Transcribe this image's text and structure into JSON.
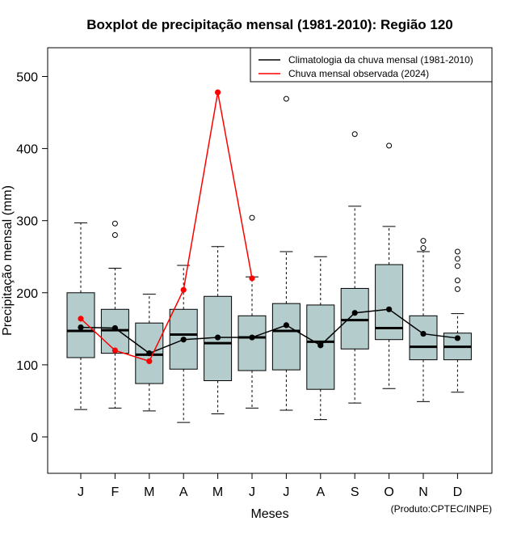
{
  "chart_data": {
    "type": "boxplot",
    "title": "Boxplot de precipitação mensal (1981-2010): Região 120",
    "xlabel": "Meses",
    "ylabel": "Precipitação mensal (mm)",
    "ylim": [
      -50,
      540
    ],
    "yticks": [
      0,
      100,
      200,
      300,
      400,
      500
    ],
    "categories": [
      "J",
      "F",
      "M",
      "A",
      "M",
      "J",
      "J",
      "A",
      "S",
      "O",
      "N",
      "D"
    ],
    "boxes": [
      {
        "month": "J",
        "whisker_low": 38,
        "q1": 110,
        "median": 147,
        "q3": 200,
        "whisker_high": 297,
        "outliers": []
      },
      {
        "month": "F",
        "whisker_low": 40,
        "q1": 116,
        "median": 148,
        "q3": 177,
        "whisker_high": 234,
        "outliers": [
          280,
          296
        ]
      },
      {
        "month": "M",
        "whisker_low": 36,
        "q1": 74,
        "median": 114,
        "q3": 158,
        "whisker_high": 198,
        "outliers": []
      },
      {
        "month": "A",
        "whisker_low": 20,
        "q1": 94,
        "median": 142,
        "q3": 177,
        "whisker_high": 238,
        "outliers": []
      },
      {
        "month": "M",
        "whisker_low": 32,
        "q1": 78,
        "median": 130,
        "q3": 195,
        "whisker_high": 264,
        "outliers": []
      },
      {
        "month": "J",
        "whisker_low": 40,
        "q1": 92,
        "median": 138,
        "q3": 168,
        "whisker_high": 222,
        "outliers": [
          304
        ]
      },
      {
        "month": "J",
        "whisker_low": 37,
        "q1": 93,
        "median": 147,
        "q3": 185,
        "whisker_high": 257,
        "outliers": [
          469
        ]
      },
      {
        "month": "A",
        "whisker_low": 24,
        "q1": 66,
        "median": 132,
        "q3": 183,
        "whisker_high": 250,
        "outliers": []
      },
      {
        "month": "S",
        "whisker_low": 47,
        "q1": 122,
        "median": 162,
        "q3": 206,
        "whisker_high": 320,
        "outliers": [
          420
        ]
      },
      {
        "month": "O",
        "whisker_low": 67,
        "q1": 135,
        "median": 151,
        "q3": 239,
        "whisker_high": 292,
        "outliers": [
          404
        ]
      },
      {
        "month": "N",
        "whisker_low": 49,
        "q1": 107,
        "median": 125,
        "q3": 168,
        "whisker_high": 257,
        "outliers": [
          262,
          272
        ]
      },
      {
        "month": "D",
        "whisker_low": 62,
        "q1": 107,
        "median": 125,
        "q3": 144,
        "whisker_high": 171,
        "outliers": [
          205,
          217,
          237,
          247,
          257
        ]
      }
    ],
    "series": [
      {
        "name": "Climatologia da chuva mensal (1981-2010)",
        "color": "#000000",
        "values": [
          152,
          151,
          116,
          135,
          138,
          138,
          155,
          127,
          172,
          177,
          143,
          137
        ]
      },
      {
        "name": "Chuva mensal observada (2024)",
        "color": "#ff0000",
        "values": [
          164,
          120,
          105,
          204,
          478,
          220,
          null,
          null,
          null,
          null,
          null,
          null
        ]
      }
    ],
    "box_fill": "#b4cccc",
    "credit": "(Produto:CPTEC/INPE)"
  }
}
